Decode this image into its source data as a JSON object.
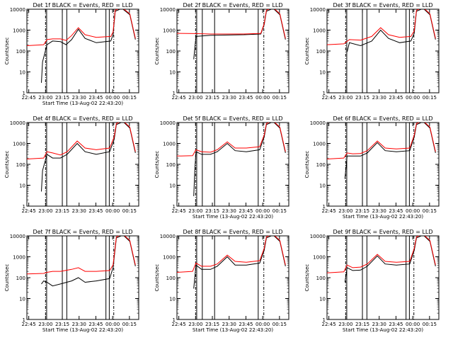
{
  "chart_data": [
    {
      "type": "line",
      "title": "Det 1f BLACK = Events, RED = LLD",
      "xlabel": "Start Time (13-Aug-02 22:43:20)",
      "ylabel": "Counts/sec",
      "y_scale": "log",
      "ylim": [
        1,
        10000
      ],
      "x_ticks": [
        "22:45",
        "23:00",
        "23:15",
        "23:30",
        "23:45",
        "00:00",
        "00:15"
      ],
      "y_ticks": [
        "1",
        "10",
        "100",
        "1000",
        "10000"
      ],
      "vlines_solid": [
        "23:01",
        "23:15",
        "23:19",
        "23:54",
        "23:57"
      ],
      "vlines_dashdot": [
        "23:00",
        "00:01"
      ],
      "red_lld": [
        [
          0,
          180
        ],
        [
          15,
          200
        ],
        [
          18,
          350
        ],
        [
          23,
          380
        ],
        [
          30,
          380
        ],
        [
          35,
          320
        ],
        [
          40,
          550
        ],
        [
          46,
          1300
        ],
        [
          52,
          600
        ],
        [
          62,
          450
        ],
        [
          75,
          500
        ],
        [
          77,
          800
        ],
        [
          79,
          9000
        ],
        [
          85,
          12000
        ],
        [
          92,
          6000
        ],
        [
          97,
          400
        ]
      ],
      "black_events": [
        [
          13,
          3
        ],
        [
          14,
          30
        ],
        [
          18,
          200
        ],
        [
          23,
          300
        ],
        [
          30,
          280
        ],
        [
          35,
          200
        ],
        [
          40,
          350
        ],
        [
          46,
          1100
        ],
        [
          52,
          400
        ],
        [
          62,
          250
        ],
        [
          75,
          300
        ],
        [
          77,
          600
        ],
        [
          79,
          8000
        ],
        [
          85,
          11000
        ],
        [
          92,
          5500
        ],
        [
          97,
          350
        ]
      ]
    },
    {
      "type": "line",
      "title": "Det 2f BLACK = Events, RED = LLD",
      "xlabel": "",
      "ylabel": "Counts/sec",
      "y_scale": "log",
      "ylim": [
        1,
        10000
      ],
      "x_ticks": [
        "22:45",
        "23:00",
        "23:15",
        "23:30",
        "23:45",
        "00:00",
        "00:15"
      ],
      "y_ticks": [
        "1",
        "10",
        "100",
        "1000",
        "10000"
      ],
      "vlines_solid": [
        "23:01",
        "23:06",
        "23:17",
        "23:56"
      ],
      "vlines_dashdot": [
        "23:00",
        "00:01"
      ],
      "red_lld": [
        [
          0,
          700
        ],
        [
          15,
          680
        ],
        [
          30,
          650
        ],
        [
          60,
          650
        ],
        [
          75,
          700
        ],
        [
          78,
          2000
        ],
        [
          80,
          9000
        ],
        [
          86,
          12000
        ],
        [
          92,
          6000
        ],
        [
          97,
          400
        ]
      ],
      "black_events": [
        [
          15,
          40
        ],
        [
          17,
          500
        ],
        [
          30,
          560
        ],
        [
          60,
          600
        ],
        [
          75,
          650
        ],
        [
          78,
          1800
        ],
        [
          80,
          8000
        ],
        [
          86,
          11000
        ],
        [
          92,
          5500
        ],
        [
          97,
          350
        ]
      ]
    },
    {
      "type": "line",
      "title": "Det 3f BLACK = Events, RED = LLD",
      "xlabel": "",
      "ylabel": "Counts/sec",
      "y_scale": "log",
      "ylim": [
        1,
        10000
      ],
      "x_ticks": [
        "22:45",
        "23:00",
        "23:15",
        "23:30",
        "23:45",
        "00:00",
        "00:15"
      ],
      "y_ticks": [
        "1",
        "10",
        "100",
        "1000",
        "10000"
      ],
      "vlines_solid": [
        "23:01",
        "23:15",
        "23:19",
        "23:54",
        "23:57"
      ],
      "vlines_dashdot": [
        "23:00",
        "00:01"
      ],
      "red_lld": [
        [
          0,
          200
        ],
        [
          15,
          220
        ],
        [
          20,
          350
        ],
        [
          30,
          330
        ],
        [
          40,
          500
        ],
        [
          48,
          1300
        ],
        [
          55,
          600
        ],
        [
          65,
          450
        ],
        [
          75,
          500
        ],
        [
          78,
          900
        ],
        [
          80,
          9000
        ],
        [
          86,
          12000
        ],
        [
          92,
          6000
        ],
        [
          97,
          400
        ]
      ],
      "black_events": [
        [
          18,
          90
        ],
        [
          20,
          250
        ],
        [
          30,
          180
        ],
        [
          40,
          300
        ],
        [
          48,
          1000
        ],
        [
          55,
          400
        ],
        [
          65,
          250
        ],
        [
          75,
          300
        ],
        [
          78,
          700
        ],
        [
          80,
          8000
        ],
        [
          86,
          11000
        ],
        [
          92,
          5500
        ],
        [
          97,
          350
        ]
      ]
    },
    {
      "type": "line",
      "title": "Det 4f BLACK = Events, RED = LLD",
      "xlabel": "",
      "ylabel": "Counts/sec",
      "y_scale": "log",
      "ylim": [
        1,
        10000
      ],
      "x_ticks": [
        "22:45",
        "23:00",
        "23:15",
        "23:30",
        "23:45",
        "00:00",
        "00:15"
      ],
      "y_ticks": [
        "1",
        "10",
        "100",
        "1000",
        "10000"
      ],
      "vlines_solid": [
        "23:01",
        "23:15",
        "23:19",
        "23:54",
        "23:57"
      ],
      "vlines_dashdot": [
        "23:00",
        "00:01"
      ],
      "red_lld": [
        [
          0,
          180
        ],
        [
          15,
          200
        ],
        [
          18,
          400
        ],
        [
          23,
          350
        ],
        [
          30,
          280
        ],
        [
          36,
          400
        ],
        [
          45,
          1300
        ],
        [
          52,
          600
        ],
        [
          62,
          500
        ],
        [
          74,
          600
        ],
        [
          78,
          2000
        ],
        [
          80,
          9000
        ],
        [
          86,
          12000
        ],
        [
          92,
          6000
        ],
        [
          97,
          400
        ]
      ],
      "black_events": [
        [
          13,
          5
        ],
        [
          14,
          50
        ],
        [
          18,
          300
        ],
        [
          23,
          200
        ],
        [
          30,
          200
        ],
        [
          36,
          300
        ],
        [
          45,
          1000
        ],
        [
          52,
          400
        ],
        [
          62,
          300
        ],
        [
          74,
          400
        ],
        [
          78,
          1500
        ],
        [
          80,
          8000
        ],
        [
          86,
          11000
        ],
        [
          92,
          5500
        ],
        [
          97,
          350
        ]
      ]
    },
    {
      "type": "line",
      "title": "Det 5f BLACK = Events, RED = LLD",
      "xlabel": "Start Time (13-Aug-02 22:43:20)",
      "ylabel": "Counts/sec",
      "y_scale": "log",
      "ylim": [
        1,
        10000
      ],
      "x_ticks": [
        "22:45",
        "23:00",
        "23:15",
        "23:30",
        "23:45",
        "00:00",
        "00:15"
      ],
      "y_ticks": [
        "1",
        "10",
        "100",
        "1000",
        "10000"
      ],
      "vlines_solid": [
        "23:01",
        "23:06",
        "23:17",
        "23:56"
      ],
      "vlines_dashdot": [
        "23:00",
        "00:01"
      ],
      "red_lld": [
        [
          0,
          250
        ],
        [
          14,
          260
        ],
        [
          17,
          500
        ],
        [
          22,
          400
        ],
        [
          30,
          380
        ],
        [
          36,
          500
        ],
        [
          45,
          1200
        ],
        [
          52,
          600
        ],
        [
          62,
          600
        ],
        [
          74,
          700
        ],
        [
          78,
          2500
        ],
        [
          80,
          9000
        ],
        [
          86,
          12000
        ],
        [
          92,
          6000
        ],
        [
          97,
          400
        ]
      ],
      "black_events": [
        [
          15,
          3
        ],
        [
          16,
          60
        ],
        [
          17,
          400
        ],
        [
          22,
          300
        ],
        [
          30,
          300
        ],
        [
          36,
          400
        ],
        [
          45,
          1000
        ],
        [
          52,
          450
        ],
        [
          62,
          400
        ],
        [
          74,
          500
        ],
        [
          78,
          2000
        ],
        [
          80,
          8000
        ],
        [
          86,
          11000
        ],
        [
          92,
          5500
        ],
        [
          97,
          350
        ]
      ]
    },
    {
      "type": "line",
      "title": "Det 6f BLACK = Events, RED = LLD",
      "xlabel": "Start Time (13-Aug-02 22:43:20)",
      "ylabel": "Counts/sec",
      "y_scale": "log",
      "ylim": [
        1,
        10000
      ],
      "x_ticks": [
        "22:45",
        "23:00",
        "23:15",
        "23:30",
        "23:45",
        "00:00",
        "00:15"
      ],
      "y_ticks": [
        "1",
        "10",
        "100",
        "1000",
        "10000"
      ],
      "vlines_solid": [
        "23:01",
        "23:15",
        "23:19",
        "23:54",
        "23:57"
      ],
      "vlines_dashdot": [
        "23:00",
        "00:01"
      ],
      "red_lld": [
        [
          0,
          180
        ],
        [
          15,
          200
        ],
        [
          18,
          350
        ],
        [
          23,
          320
        ],
        [
          30,
          330
        ],
        [
          36,
          450
        ],
        [
          45,
          1300
        ],
        [
          52,
          600
        ],
        [
          62,
          550
        ],
        [
          74,
          600
        ],
        [
          78,
          2500
        ],
        [
          80,
          9000
        ],
        [
          86,
          12000
        ],
        [
          92,
          6000
        ],
        [
          97,
          400
        ]
      ],
      "black_events": [
        [
          16,
          20
        ],
        [
          18,
          250
        ],
        [
          23,
          250
        ],
        [
          30,
          250
        ],
        [
          36,
          350
        ],
        [
          45,
          1100
        ],
        [
          52,
          450
        ],
        [
          62,
          400
        ],
        [
          74,
          450
        ],
        [
          78,
          2000
        ],
        [
          80,
          8000
        ],
        [
          86,
          11000
        ],
        [
          92,
          5500
        ],
        [
          97,
          350
        ]
      ]
    },
    {
      "type": "line",
      "title": "Det 7f BLACK = Events, RED = LLD",
      "xlabel": "Start Time (13-Aug-02 22:43:20)",
      "ylabel": "Counts/sec",
      "y_scale": "log",
      "ylim": [
        1,
        10000
      ],
      "x_ticks": [
        "22:45",
        "23:00",
        "23:15",
        "23:30",
        "23:45",
        "00:00",
        "00:15"
      ],
      "y_ticks": [
        "1",
        "10",
        "100",
        "1000",
        "10000"
      ],
      "vlines_solid": [
        "23:01",
        "23:15",
        "23:19",
        "23:54",
        "23:57"
      ],
      "vlines_dashdot": [
        "23:00",
        "00:01"
      ],
      "red_lld": [
        [
          0,
          150
        ],
        [
          15,
          160
        ],
        [
          18,
          180
        ],
        [
          23,
          200
        ],
        [
          30,
          200
        ],
        [
          40,
          250
        ],
        [
          46,
          300
        ],
        [
          52,
          200
        ],
        [
          62,
          200
        ],
        [
          74,
          220
        ],
        [
          77,
          400
        ],
        [
          80,
          9000
        ],
        [
          86,
          12000
        ],
        [
          92,
          6000
        ],
        [
          97,
          400
        ]
      ],
      "black_events": [
        [
          13,
          50
        ],
        [
          15,
          70
        ],
        [
          18,
          60
        ],
        [
          23,
          40
        ],
        [
          30,
          50
        ],
        [
          40,
          70
        ],
        [
          46,
          100
        ],
        [
          52,
          60
        ],
        [
          62,
          70
        ],
        [
          74,
          90
        ],
        [
          77,
          300
        ],
        [
          80,
          8000
        ],
        [
          86,
          11000
        ],
        [
          92,
          5500
        ],
        [
          97,
          350
        ]
      ]
    },
    {
      "type": "line",
      "title": "Det 8f BLACK = Events, RED = LLD",
      "xlabel": "Start Time (13-Aug-02 22:43:20)",
      "ylabel": "Counts/sec",
      "y_scale": "log",
      "ylim": [
        1,
        10000
      ],
      "x_ticks": [
        "22:45",
        "23:00",
        "23:15",
        "23:30",
        "23:45",
        "00:00",
        "00:15"
      ],
      "y_ticks": [
        "1",
        "10",
        "100",
        "1000",
        "10000"
      ],
      "vlines_solid": [
        "23:01",
        "23:06",
        "23:17",
        "23:56"
      ],
      "vlines_dashdot": [
        "23:00",
        "00:01"
      ],
      "red_lld": [
        [
          0,
          180
        ],
        [
          14,
          200
        ],
        [
          17,
          500
        ],
        [
          22,
          350
        ],
        [
          30,
          350
        ],
        [
          36,
          450
        ],
        [
          45,
          1200
        ],
        [
          52,
          600
        ],
        [
          62,
          550
        ],
        [
          74,
          650
        ],
        [
          78,
          2500
        ],
        [
          80,
          9000
        ],
        [
          86,
          12000
        ],
        [
          92,
          6000
        ],
        [
          97,
          400
        ]
      ],
      "black_events": [
        [
          15,
          30
        ],
        [
          17,
          400
        ],
        [
          22,
          250
        ],
        [
          30,
          250
        ],
        [
          36,
          350
        ],
        [
          45,
          1000
        ],
        [
          52,
          400
        ],
        [
          62,
          400
        ],
        [
          74,
          500
        ],
        [
          78,
          2000
        ],
        [
          80,
          8000
        ],
        [
          86,
          11000
        ],
        [
          92,
          5500
        ],
        [
          97,
          350
        ]
      ]
    },
    {
      "type": "line",
      "title": "Det 9f BLACK = Events, RED = LLD",
      "xlabel": "Start Time (13-Aug-02 22:43:20)",
      "ylabel": "Counts/sec",
      "y_scale": "log",
      "ylim": [
        1,
        10000
      ],
      "x_ticks": [
        "22:45",
        "23:00",
        "23:15",
        "23:30",
        "23:45",
        "00:00",
        "00:15"
      ],
      "y_ticks": [
        "1",
        "10",
        "100",
        "1000",
        "10000"
      ],
      "vlines_solid": [
        "23:01",
        "23:15",
        "23:19",
        "23:54",
        "23:57"
      ],
      "vlines_dashdot": [
        "23:00",
        "00:01"
      ],
      "red_lld": [
        [
          0,
          170
        ],
        [
          15,
          190
        ],
        [
          18,
          400
        ],
        [
          23,
          300
        ],
        [
          30,
          320
        ],
        [
          36,
          450
        ],
        [
          45,
          1300
        ],
        [
          52,
          600
        ],
        [
          62,
          550
        ],
        [
          74,
          600
        ],
        [
          78,
          2500
        ],
        [
          80,
          9000
        ],
        [
          86,
          12000
        ],
        [
          92,
          6000
        ],
        [
          97,
          400
        ]
      ],
      "black_events": [
        [
          16,
          60
        ],
        [
          18,
          300
        ],
        [
          23,
          220
        ],
        [
          30,
          230
        ],
        [
          36,
          350
        ],
        [
          45,
          1100
        ],
        [
          52,
          450
        ],
        [
          62,
          400
        ],
        [
          74,
          450
        ],
        [
          78,
          2000
        ],
        [
          80,
          8000
        ],
        [
          86,
          11000
        ],
        [
          92,
          5500
        ],
        [
          97,
          350
        ]
      ]
    }
  ]
}
